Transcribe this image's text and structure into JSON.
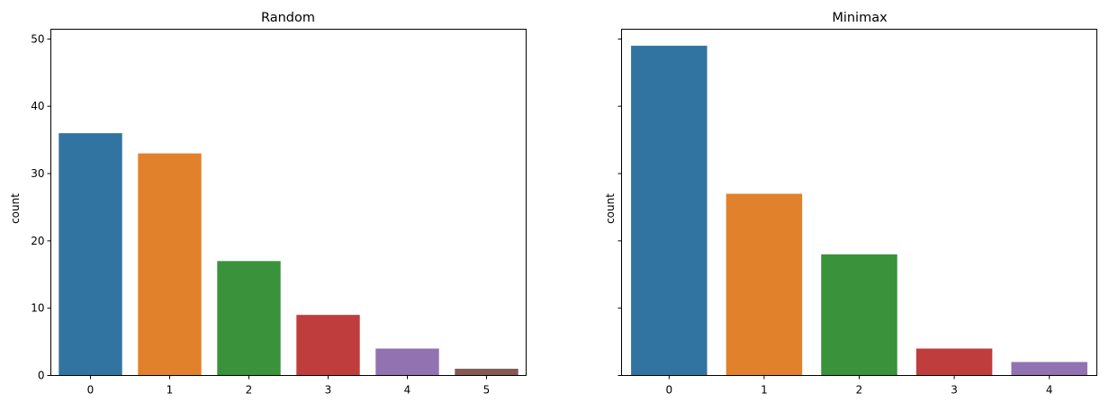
{
  "chart_data": [
    {
      "type": "bar",
      "title": "Random",
      "xlabel": "",
      "ylabel": "count",
      "categories": [
        "0",
        "1",
        "2",
        "3",
        "4",
        "5"
      ],
      "values": [
        36,
        33,
        17,
        9,
        4,
        1
      ],
      "colors": [
        "#3274a1",
        "#e1812c",
        "#3a923a",
        "#c03d3e",
        "#9372b2",
        "#845b53"
      ],
      "ylim": [
        0,
        51.45
      ],
      "yticks": [
        0,
        10,
        20,
        30,
        40,
        50
      ],
      "ytick_labels_visible": true,
      "grid": false
    },
    {
      "type": "bar",
      "title": "Minimax",
      "xlabel": "",
      "ylabel": "count",
      "categories": [
        "0",
        "1",
        "2",
        "3",
        "4"
      ],
      "values": [
        49,
        27,
        18,
        4,
        2
      ],
      "colors": [
        "#3274a1",
        "#e1812c",
        "#3a923a",
        "#c03d3e",
        "#9372b2"
      ],
      "ylim": [
        0,
        51.45
      ],
      "yticks": [
        0,
        10,
        20,
        30,
        40,
        50
      ],
      "ytick_labels_visible": false,
      "grid": false
    }
  ]
}
